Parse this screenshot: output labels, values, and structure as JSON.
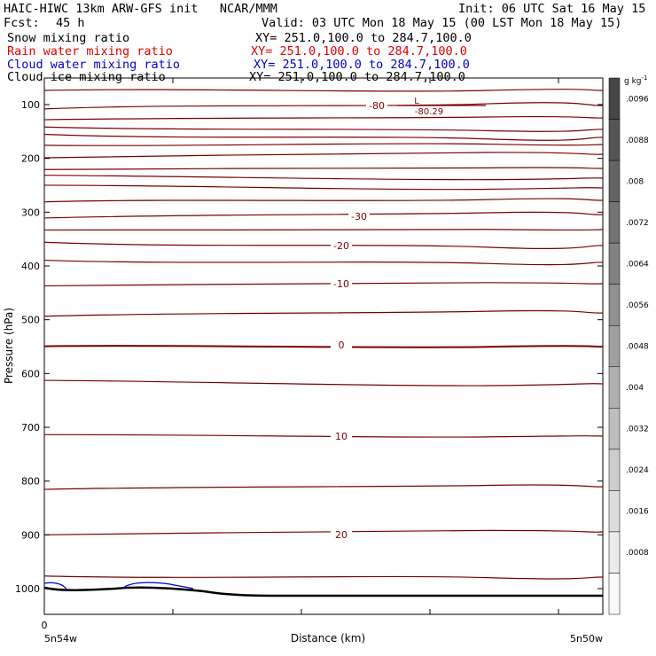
{
  "header": {
    "left1": "HAIC-HIWC 13km ARW-GFS init   NCAR/MMM",
    "right1": "Init: 06 UTC Sat 16 May 15",
    "fcst_label": "Fcst:",
    "fcst_value": "45 h",
    "valid": "Valid: 03 UTC Mon 18 May 15 (00 LST Mon 18 May 15)",
    "fields": [
      {
        "name": "Snow mixing ratio",
        "xy": "XY= 251.0,100.0 to 284.7,100.0",
        "color": "#000000"
      },
      {
        "name": "Rain water mixing ratio",
        "xy": "XY= 251.0,100.0 to 284.7,100.0",
        "color": "#e00000"
      },
      {
        "name": "Cloud water mixing ratio",
        "xy": "XY= 251.0,100.0 to 284.7,100.0",
        "color": "#0000cc"
      },
      {
        "name": "Cloud ice mixing ratio",
        "xy": "XY= 251.0,100.0 to 284.7,100.0",
        "color": "#000000"
      }
    ]
  },
  "chart_data": {
    "type": "line",
    "ylabel": "Pressure (hPa)",
    "xlabel": "Distance (km)",
    "x_start_label": "5n54w",
    "x_end_label": "5n50w",
    "x_zero_label": "0",
    "y_ticks": [
      100,
      200,
      300,
      400,
      500,
      600,
      700,
      800,
      900,
      1000
    ],
    "ylim": [
      1050,
      50
    ],
    "contour_color": "#7a0000",
    "temperature_contour_labels": [
      {
        "label": "-80",
        "pressure": 100
      },
      {
        "label": "-30",
        "pressure": 300
      },
      {
        "label": "-20",
        "pressure": 360
      },
      {
        "label": "-10",
        "pressure": 430
      },
      {
        "label": "0",
        "pressure": 545
      },
      {
        "label": "10",
        "pressure": 710
      },
      {
        "label": "20",
        "pressure": 900
      }
    ],
    "low_marker": {
      "label": "L",
      "value": "-80.29"
    },
    "colorbar": {
      "unit": "g kg",
      "unit_exp": "-1",
      "labels": [
        ".0096",
        ".0088",
        ".008",
        ".0072",
        ".0064",
        ".0056",
        ".0048",
        ".004",
        ".0032",
        ".0024",
        ".0016",
        ".0008"
      ]
    }
  }
}
